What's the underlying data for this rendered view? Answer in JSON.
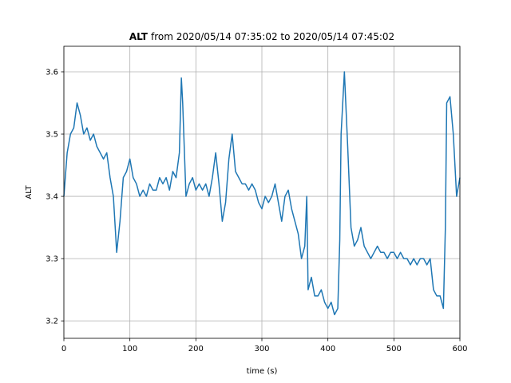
{
  "chart_data": {
    "type": "line",
    "title": {
      "variable": "ALT",
      "range": "from 2020/05/14 07:35:02 to 2020/05/14 07:45:02"
    },
    "xlabel": "time (s)",
    "ylabel": "ALT",
    "xlim": [
      0,
      600
    ],
    "xticks": [
      0,
      100,
      200,
      300,
      400,
      500,
      600
    ],
    "ylim": [
      3.172,
      3.641
    ],
    "yticks": [
      3.2,
      3.3,
      3.4,
      3.5,
      3.6
    ],
    "grid": true,
    "series": [
      {
        "color": "#1f77b4",
        "x": [
          0,
          5,
          10,
          15,
          20,
          25,
          30,
          35,
          40,
          45,
          50,
          55,
          60,
          65,
          70,
          75,
          80,
          85,
          90,
          95,
          100,
          105,
          110,
          115,
          120,
          125,
          130,
          135,
          140,
          145,
          150,
          155,
          160,
          165,
          170,
          175,
          178,
          180,
          185,
          190,
          195,
          200,
          205,
          210,
          215,
          220,
          225,
          230,
          235,
          240,
          245,
          250,
          255,
          260,
          265,
          270,
          275,
          280,
          285,
          290,
          295,
          300,
          305,
          310,
          315,
          320,
          325,
          330,
          335,
          340,
          345,
          350,
          355,
          360,
          365,
          368,
          370,
          375,
          380,
          385,
          390,
          395,
          400,
          405,
          410,
          415,
          418,
          420,
          425,
          430,
          435,
          440,
          445,
          450,
          455,
          460,
          465,
          470,
          475,
          480,
          485,
          490,
          495,
          500,
          505,
          510,
          515,
          520,
          525,
          530,
          535,
          540,
          545,
          550,
          555,
          560,
          565,
          570,
          575,
          578,
          580,
          585,
          590,
          595,
          600
        ],
        "values": [
          3.4,
          3.47,
          3.5,
          3.51,
          3.55,
          3.53,
          3.5,
          3.51,
          3.49,
          3.5,
          3.48,
          3.47,
          3.46,
          3.47,
          3.43,
          3.4,
          3.31,
          3.36,
          3.43,
          3.44,
          3.46,
          3.43,
          3.42,
          3.4,
          3.41,
          3.4,
          3.42,
          3.41,
          3.41,
          3.43,
          3.42,
          3.43,
          3.41,
          3.44,
          3.43,
          3.47,
          3.59,
          3.55,
          3.4,
          3.42,
          3.43,
          3.41,
          3.42,
          3.41,
          3.42,
          3.4,
          3.43,
          3.47,
          3.42,
          3.36,
          3.39,
          3.46,
          3.5,
          3.44,
          3.43,
          3.42,
          3.42,
          3.41,
          3.42,
          3.41,
          3.39,
          3.38,
          3.4,
          3.39,
          3.4,
          3.42,
          3.39,
          3.36,
          3.4,
          3.41,
          3.38,
          3.36,
          3.34,
          3.3,
          3.32,
          3.4,
          3.25,
          3.27,
          3.24,
          3.24,
          3.25,
          3.23,
          3.22,
          3.23,
          3.21,
          3.22,
          3.33,
          3.5,
          3.6,
          3.48,
          3.35,
          3.32,
          3.33,
          3.35,
          3.32,
          3.31,
          3.3,
          3.31,
          3.32,
          3.31,
          3.31,
          3.3,
          3.31,
          3.31,
          3.3,
          3.31,
          3.3,
          3.3,
          3.29,
          3.3,
          3.29,
          3.3,
          3.3,
          3.29,
          3.3,
          3.25,
          3.24,
          3.24,
          3.22,
          3.35,
          3.55,
          3.56,
          3.5,
          3.4,
          3.43
        ]
      }
    ]
  }
}
